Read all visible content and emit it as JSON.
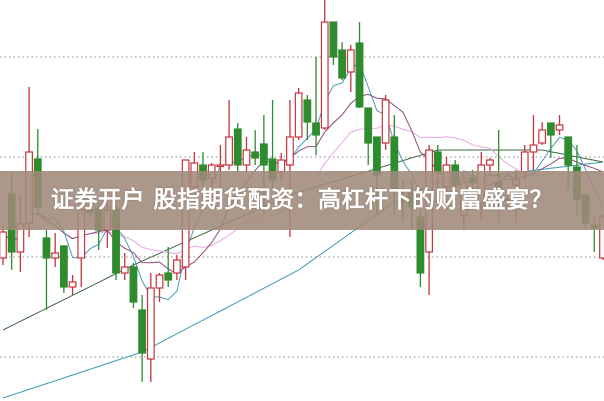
{
  "headline": "证券开户 股指期货配资：高杠杆下的财富盛宴？",
  "chart_data": {
    "type": "candlestick",
    "title": "",
    "xlabel": "",
    "ylabel": "",
    "grid": "horizontal-dotted",
    "gridlines": [
      1,
      2,
      3,
      4
    ],
    "ylim": [
      0.56,
      4.57
    ],
    "colors": {
      "up": "#c8323c",
      "down": "#2e8b2e",
      "ma5": "#4a9ab8",
      "ma10": "#8a4a7c",
      "ma20": "#e6a8e6",
      "ma_mid": "#3f6b3f",
      "ma_long": "#3a9ab0",
      "grid": "#a0a0a0"
    },
    "candles_ochl_note_order": [
      "open",
      "close",
      "high",
      "low"
    ],
    "candles": [
      [
        1.99,
        2.25,
        2.32,
        1.92
      ],
      [
        2.63,
        2.05,
        2.85,
        1.87
      ],
      [
        2.05,
        2.33,
        2.62,
        1.85
      ],
      [
        2.34,
        3.05,
        3.7,
        2.2
      ],
      [
        2.98,
        2.5,
        3.28,
        2.4
      ],
      [
        2.19,
        1.99,
        2.27,
        1.47
      ],
      [
        1.99,
        2.04,
        2.24,
        1.9
      ],
      [
        2.11,
        1.7,
        2.12,
        1.64
      ],
      [
        1.7,
        1.75,
        1.82,
        1.62
      ],
      [
        1.99,
        2.47,
        2.49,
        1.7
      ],
      [
        2.47,
        2.45,
        2.5,
        2.4
      ],
      [
        2.49,
        2.27,
        2.55,
        2.07
      ],
      [
        2.27,
        2.47,
        2.55,
        2.09
      ],
      [
        2.48,
        1.84,
        2.52,
        1.77
      ],
      [
        1.84,
        1.9,
        2.04,
        1.77
      ],
      [
        1.9,
        1.55,
        1.94,
        1.49
      ],
      [
        1.47,
        1.04,
        1.62,
        0.75
      ],
      [
        0.98,
        1.69,
        1.84,
        0.75
      ],
      [
        1.69,
        1.82,
        1.84,
        1.55
      ],
      [
        1.84,
        1.77,
        2.1,
        1.7
      ],
      [
        1.84,
        1.97,
        2.02,
        1.77
      ],
      [
        1.9,
        2.97,
        2.97,
        1.77
      ],
      [
        2.7,
        2.94,
        3.05,
        2.67
      ],
      [
        2.92,
        2.77,
        3.05,
        2.7
      ],
      [
        2.79,
        2.92,
        2.94,
        2.7
      ],
      [
        2.91,
        2.92,
        3.12,
        2.7
      ],
      [
        2.92,
        3.2,
        3.57,
        2.87
      ],
      [
        3.28,
        2.92,
        3.34,
        2.85
      ],
      [
        2.92,
        3.07,
        3.2,
        2.85
      ],
      [
        3.05,
        2.99,
        3.27,
        2.92
      ],
      [
        3.13,
        2.92,
        3.42,
        2.42
      ],
      [
        2.98,
        2.77,
        3.57,
        2.69
      ],
      [
        2.85,
        2.97,
        3.04,
        2.75
      ],
      [
        2.92,
        3.2,
        3.57,
        2.2
      ],
      [
        3.2,
        3.64,
        3.69,
        3.17
      ],
      [
        3.57,
        3.35,
        3.62,
        3.17
      ],
      [
        3.34,
        3.22,
        4.0,
        3.02
      ],
      [
        3.29,
        4.35,
        4.57,
        3.27
      ],
      [
        4.35,
        4.0,
        4.35,
        3.92
      ],
      [
        4.07,
        3.79,
        4.15,
        3.77
      ],
      [
        3.85,
        4.07,
        4.12,
        3.65
      ],
      [
        4.14,
        3.5,
        4.35,
        3.49
      ],
      [
        3.49,
        3.14,
        3.49,
        2.92
      ],
      [
        3.2,
        2.82,
        3.2,
        2.42
      ],
      [
        3.14,
        3.57,
        3.62,
        3.07
      ],
      [
        3.2,
        2.69,
        3.42,
        2.42
      ],
      [
        2.58,
        2.55,
        2.77,
        2.35
      ],
      [
        2.64,
        2.5,
        2.77,
        2.27
      ],
      [
        2.4,
        1.84,
        2.47,
        1.7
      ],
      [
        2.05,
        3.07,
        3.12,
        1.62
      ],
      [
        3.05,
        2.85,
        3.12,
        2.52
      ],
      [
        2.7,
        2.92,
        3.0,
        2.47
      ],
      [
        2.92,
        2.72,
        2.97,
        2.57
      ],
      [
        2.42,
        2.75,
        2.82,
        2.27
      ],
      [
        2.79,
        2.74,
        2.87,
        2.62
      ],
      [
        2.54,
        2.92,
        3.05,
        2.37
      ],
      [
        2.92,
        2.97,
        2.99,
        2.82
      ],
      [
        2.75,
        2.67,
        3.27,
        2.34
      ],
      [
        2.58,
        2.57,
        2.62,
        2.47
      ],
      [
        2.72,
        2.77,
        2.87,
        2.34
      ],
      [
        2.85,
        3.05,
        3.12,
        2.77
      ],
      [
        3.05,
        3.12,
        3.42,
        2.87
      ],
      [
        3.14,
        3.27,
        3.35,
        3.12
      ],
      [
        3.34,
        3.22,
        3.34,
        2.99
      ],
      [
        3.27,
        3.32,
        3.42,
        3.22
      ],
      [
        3.2,
        2.92,
        3.2,
        2.67
      ],
      [
        2.9,
        2.57,
        3.12,
        2.42
      ],
      [
        2.62,
        2.34,
        2.62,
        2.27
      ],
      [
        2.32,
        2.29,
        2.42,
        2.05
      ],
      [
        1.99,
        2.4,
        2.42,
        1.97
      ]
    ],
    "moving_averages": [
      5,
      10,
      20
    ],
    "ma_mid_points": [
      [
        0,
        1.27
      ],
      [
        15,
        1.92
      ],
      [
        33,
        2.62
      ],
      [
        50,
        3.07
      ],
      [
        62,
        3.07
      ],
      [
        69,
        2.95
      ]
    ],
    "ma_long_points": [
      [
        0,
        0.59
      ],
      [
        16,
        1.05
      ],
      [
        34,
        1.87
      ],
      [
        45,
        2.55
      ],
      [
        50,
        2.75
      ],
      [
        69,
        2.95
      ]
    ]
  }
}
